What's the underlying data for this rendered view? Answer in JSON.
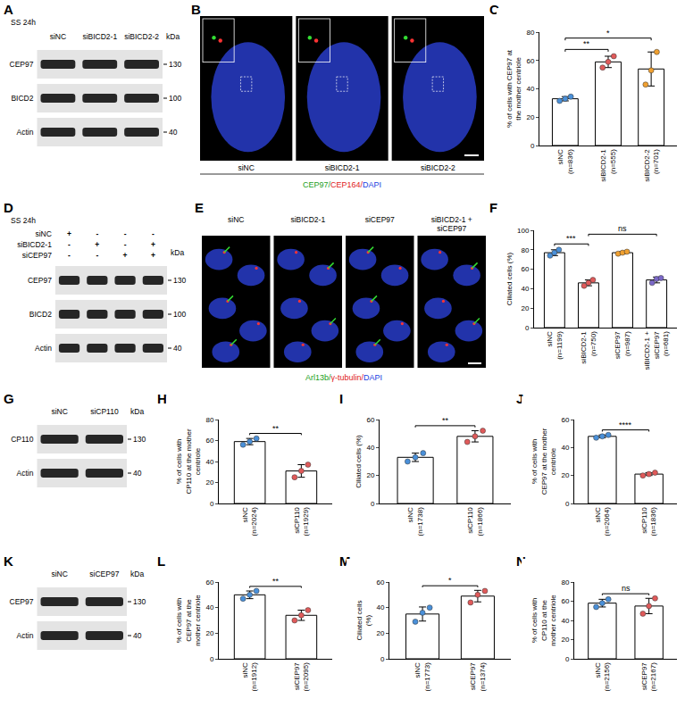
{
  "chart_data": [
    {
      "panel": "C",
      "type": "bar",
      "ylabel": "% of cells with CEP97 at the mother centriole",
      "categories": [
        "siNC (n=836)",
        "siBICD2-1 (n=555)",
        "siBICD2-2 (n=701)"
      ],
      "values": [
        33,
        59,
        54
      ],
      "errors": [
        1.5,
        4,
        12
      ],
      "points": [
        [
          31.5,
          33,
          34.5
        ],
        [
          55,
          59,
          63
        ],
        [
          43,
          53,
          66
        ]
      ],
      "colors": [
        "#4a90d9",
        "#e05a5a",
        "#f0a030"
      ],
      "ylim": [
        0,
        80
      ],
      "yticks": [
        0,
        20,
        40,
        60,
        80
      ],
      "significance": [
        {
          "from": 0,
          "to": 1,
          "label": "**"
        },
        {
          "from": 0,
          "to": 2,
          "label": "*"
        }
      ]
    },
    {
      "panel": "F",
      "type": "bar",
      "ylabel": "Ciliated cells (%)",
      "categories": [
        "siNC (n=1199)",
        "siBICD2-1 (n=750)",
        "siCEP97 (n=987)",
        "siBICD2-1 + siCEP97 (n=681)"
      ],
      "values": [
        77,
        46,
        77,
        49
      ],
      "errors": [
        3,
        3,
        1,
        3
      ],
      "points": [
        [
          74,
          77,
          80
        ],
        [
          43,
          46,
          49
        ],
        [
          76,
          77,
          78
        ],
        [
          46,
          50,
          51
        ]
      ],
      "colors": [
        "#4a90d9",
        "#e05a5a",
        "#f0a030",
        "#7b68c8"
      ],
      "ylim": [
        0,
        100
      ],
      "yticks": [
        0,
        20,
        40,
        60,
        80,
        100
      ],
      "significance": [
        {
          "from": 0,
          "to": 1,
          "label": "***"
        },
        {
          "from": 1,
          "to": 3,
          "label": "ns"
        }
      ]
    },
    {
      "panel": "H",
      "type": "bar",
      "ylabel": "% of cells with CP110 at the mother centriole",
      "categories": [
        "siNC (n=2024)",
        "siCP110 (n=1929)"
      ],
      "values": [
        59,
        31
      ],
      "errors": [
        3,
        6
      ],
      "points": [
        [
          56,
          59,
          62
        ],
        [
          25,
          31,
          37
        ]
      ],
      "colors": [
        "#4a90d9",
        "#e05a5a"
      ],
      "ylim": [
        0,
        80
      ],
      "yticks": [
        0,
        20,
        40,
        60,
        80
      ],
      "significance": [
        {
          "from": 0,
          "to": 1,
          "label": "**"
        }
      ]
    },
    {
      "panel": "I",
      "type": "bar",
      "ylabel": "Ciliated cells (%)",
      "categories": [
        "siNC (n=1738)",
        "siCP110 (n=1866)"
      ],
      "values": [
        33,
        48
      ],
      "errors": [
        3,
        4
      ],
      "points": [
        [
          30,
          33,
          36
        ],
        [
          44,
          48,
          52
        ]
      ],
      "colors": [
        "#4a90d9",
        "#e05a5a"
      ],
      "ylim": [
        0,
        60
      ],
      "yticks": [
        0,
        20,
        40,
        60
      ],
      "significance": [
        {
          "from": 0,
          "to": 1,
          "label": "**"
        }
      ]
    },
    {
      "panel": "J",
      "type": "bar",
      "ylabel": "% of cells with CEP97 at the mother centriole",
      "categories": [
        "siNC (n=2064)",
        "siCP110 (n=1836)"
      ],
      "values": [
        48,
        21
      ],
      "errors": [
        1,
        1
      ],
      "points": [
        [
          47,
          48,
          49
        ],
        [
          20,
          21,
          22
        ]
      ],
      "colors": [
        "#4a90d9",
        "#e05a5a"
      ],
      "ylim": [
        0,
        60
      ],
      "yticks": [
        0,
        20,
        40,
        60
      ],
      "significance": [
        {
          "from": 0,
          "to": 1,
          "label": "****"
        }
      ]
    },
    {
      "panel": "L",
      "type": "bar",
      "ylabel": "% of cells with CEP97 at the mother centriole",
      "categories": [
        "siNC (n=1912)",
        "siCEP97 (n=2095)"
      ],
      "values": [
        50,
        34
      ],
      "errors": [
        3,
        4
      ],
      "points": [
        [
          47,
          50,
          53
        ],
        [
          30,
          34,
          38
        ]
      ],
      "colors": [
        "#4a90d9",
        "#e05a5a"
      ],
      "ylim": [
        0,
        60
      ],
      "yticks": [
        0,
        20,
        40,
        60
      ],
      "significance": [
        {
          "from": 0,
          "to": 1,
          "label": "**"
        }
      ]
    },
    {
      "panel": "M",
      "type": "bar",
      "ylabel": "Ciliated cells (%)",
      "categories": [
        "siNC (n=1773)",
        "siCEP97 (n=1374)"
      ],
      "values": [
        35,
        49
      ],
      "errors": [
        5.5,
        4.5
      ],
      "points": [
        [
          29,
          36,
          40
        ],
        [
          44,
          50,
          53
        ]
      ],
      "colors": [
        "#4a90d9",
        "#e05a5a"
      ],
      "ylim": [
        0,
        60
      ],
      "yticks": [
        0,
        20,
        40,
        60
      ],
      "significance": [
        {
          "from": 0,
          "to": 1,
          "label": "*"
        }
      ]
    },
    {
      "panel": "N",
      "type": "bar",
      "ylabel": "% of cells with CP110 at the mother centriole",
      "categories": [
        "siNC (n=2156)",
        "siCEP97 (n=2167)"
      ],
      "values": [
        58,
        55
      ],
      "errors": [
        4,
        8
      ],
      "points": [
        [
          54,
          58,
          62
        ],
        [
          47,
          55,
          63
        ]
      ],
      "colors": [
        "#4a90d9",
        "#e05a5a"
      ],
      "ylim": [
        0,
        80
      ],
      "yticks": [
        0,
        20,
        40,
        60,
        80
      ],
      "significance": [
        {
          "from": 0,
          "to": 1,
          "label": "ns"
        }
      ]
    }
  ],
  "blots": [
    {
      "panel": "A",
      "header": "SS 24h",
      "lanes": [
        "siNC",
        "siBICD2-1",
        "siBICD2-2"
      ],
      "kda_label": "kDa",
      "rows": [
        {
          "name": "CEP97",
          "kda": 130
        },
        {
          "name": "BICD2",
          "kda": 100
        },
        {
          "name": "Actin",
          "kda": 40
        }
      ]
    },
    {
      "panel": "D",
      "header": "SS 24h",
      "conditions": [
        {
          "name": "siNC",
          "signs": [
            "+",
            "-",
            "-",
            "-"
          ]
        },
        {
          "name": "siBICD2-1",
          "signs": [
            "-",
            "+",
            "-",
            "+"
          ]
        },
        {
          "name": "siCEP97",
          "signs": [
            "-",
            "-",
            "+",
            "+"
          ]
        }
      ],
      "kda_label": "kDa",
      "rows": [
        {
          "name": "CEP97",
          "kda": 130
        },
        {
          "name": "BICD2",
          "kda": 100
        },
        {
          "name": "Actin",
          "kda": 40
        }
      ]
    },
    {
      "panel": "G",
      "lanes": [
        "siNC",
        "siCP110"
      ],
      "kda_label": "kDa",
      "rows": [
        {
          "name": "CP110",
          "kda": 130
        },
        {
          "name": "Actin",
          "kda": 40
        }
      ]
    },
    {
      "panel": "K",
      "lanes": [
        "siNC",
        "siCEP97"
      ],
      "kda_label": "kDa",
      "rows": [
        {
          "name": "CEP97",
          "kda": 130
        },
        {
          "name": "Actin",
          "kda": 40
        }
      ]
    }
  ],
  "micrographs": [
    {
      "panel": "B",
      "labels": [
        "siNC",
        "siBICD2-1",
        "siBICD2-2"
      ],
      "label_position": "bottom",
      "separator": "/",
      "stains": [
        {
          "text": "CEP97",
          "color": "#1a9e1a"
        },
        {
          "text": "CEP164",
          "color": "#e02020"
        },
        {
          "text": "DAPI",
          "color": "#2040e0"
        }
      ]
    },
    {
      "panel": "E",
      "labels": [
        "siNC",
        "siBICD2-1",
        "siCEP97",
        "siBICD2-1 + siCEP97"
      ],
      "label_position": "top",
      "separator": "/",
      "stains": [
        {
          "text": "Arl13b",
          "color": "#1a9e1a"
        },
        {
          "text": "γ-tubulin",
          "color": "#e02020"
        },
        {
          "text": "DAPI",
          "color": "#2040e0"
        }
      ]
    }
  ]
}
